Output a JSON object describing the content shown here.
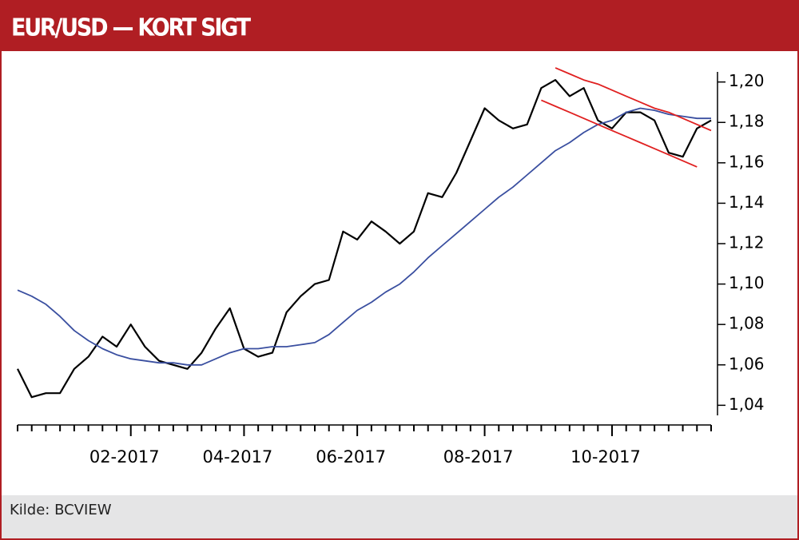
{
  "chart_data": {
    "type": "line",
    "title": "EUR/USD — KORT SIGT",
    "source": "Kilde: BCVIEW",
    "categories": [
      null,
      null,
      null,
      null,
      null,
      null,
      null,
      null,
      "02-2017",
      null,
      null,
      null,
      null,
      null,
      null,
      null,
      "04-2017",
      null,
      null,
      null,
      null,
      null,
      null,
      null,
      "06-2017",
      null,
      null,
      null,
      null,
      null,
      null,
      null,
      null,
      "08-2017",
      null,
      null,
      null,
      null,
      null,
      null,
      null,
      null,
      "10-2017",
      null,
      null,
      null,
      null,
      null,
      null,
      null
    ],
    "series": [
      {
        "color": "#000000",
        "values": [
          1.058,
          1.044,
          1.046,
          1.046,
          1.058,
          1.064,
          1.074,
          1.069,
          1.08,
          1.069,
          1.062,
          1.06,
          1.058,
          1.066,
          1.078,
          1.088,
          1.068,
          1.064,
          1.066,
          1.086,
          1.094,
          1.1,
          1.102,
          1.126,
          1.122,
          1.131,
          1.126,
          1.12,
          1.126,
          1.145,
          1.143,
          1.155,
          1.171,
          1.187,
          1.181,
          1.177,
          1.179,
          1.197,
          1.201,
          1.193,
          1.197,
          1.181,
          1.177,
          1.185,
          1.185,
          1.181,
          1.165,
          1.163,
          1.177,
          1.181
        ]
      },
      {
        "color": "#3a4fa0",
        "values": [
          1.097,
          1.094,
          1.09,
          1.084,
          1.077,
          1.072,
          1.068,
          1.065,
          1.063,
          1.062,
          1.061,
          1.061,
          1.06,
          1.06,
          1.063,
          1.066,
          1.068,
          1.068,
          1.069,
          1.069,
          1.07,
          1.071,
          1.075,
          1.081,
          1.087,
          1.091,
          1.096,
          1.1,
          1.106,
          1.113,
          1.119,
          1.125,
          1.131,
          1.137,
          1.143,
          1.148,
          1.154,
          1.16,
          1.166,
          1.17,
          1.175,
          1.179,
          1.181,
          1.185,
          1.187,
          1.186,
          1.184,
          1.183,
          1.182,
          1.182
        ]
      },
      {
        "color": "#e02020",
        "values": [
          null,
          null,
          null,
          null,
          null,
          null,
          null,
          null,
          null,
          null,
          null,
          null,
          null,
          null,
          null,
          null,
          null,
          null,
          null,
          null,
          null,
          null,
          null,
          null,
          null,
          null,
          null,
          null,
          null,
          null,
          null,
          null,
          null,
          null,
          null,
          null,
          null,
          null,
          1.207,
          1.204,
          1.201,
          1.199,
          1.196,
          1.193,
          1.19,
          1.187,
          1.185,
          1.182,
          1.179,
          1.176
        ]
      },
      {
        "color": "#e02020",
        "values": [
          null,
          null,
          null,
          null,
          null,
          null,
          null,
          null,
          null,
          null,
          null,
          null,
          null,
          null,
          null,
          null,
          null,
          null,
          null,
          null,
          null,
          null,
          null,
          null,
          null,
          null,
          null,
          null,
          null,
          null,
          null,
          null,
          null,
          null,
          null,
          null,
          null,
          1.191,
          1.188,
          1.185,
          1.182,
          1.179,
          1.176,
          1.173,
          1.17,
          1.167,
          1.164,
          1.161,
          1.158,
          null
        ]
      }
    ],
    "ylim": [
      1.035,
      1.205
    ],
    "yticks": [
      {
        "value": 1.04,
        "label": "1,04"
      },
      {
        "value": 1.06,
        "label": "1,06"
      },
      {
        "value": 1.08,
        "label": "1,08"
      },
      {
        "value": 1.1,
        "label": "1,10"
      },
      {
        "value": 1.12,
        "label": "1,12"
      },
      {
        "value": 1.14,
        "label": "1,14"
      },
      {
        "value": 1.16,
        "label": "1,16"
      },
      {
        "value": 1.18,
        "label": "1,18"
      },
      {
        "value": 1.2,
        "label": "1,20"
      }
    ]
  }
}
